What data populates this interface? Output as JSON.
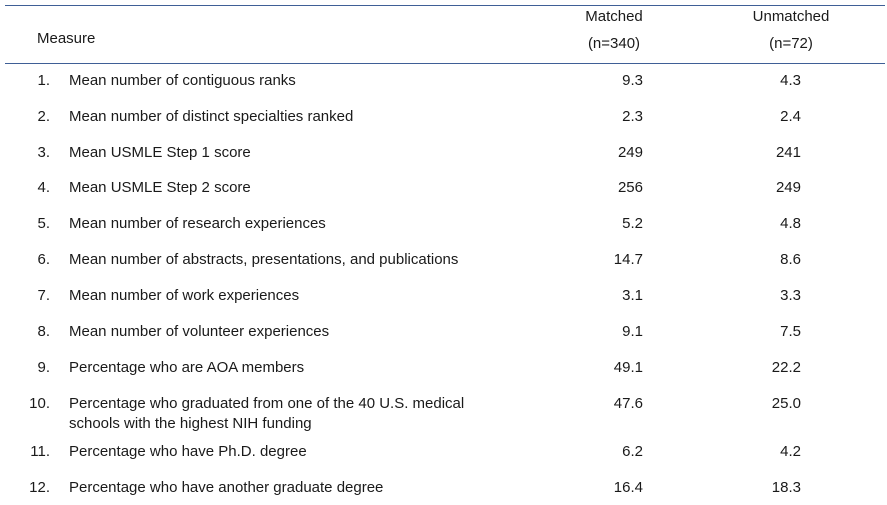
{
  "table": {
    "header": {
      "measure": "Measure",
      "matched": [
        "Matched",
        "(n=340)"
      ],
      "unmatched": [
        "Unmatched",
        "(n=72)"
      ]
    },
    "rows": [
      {
        "number": "1.",
        "label": [
          "Mean number of contiguous ranks"
        ],
        "matched": "9.3",
        "unmatched": "4.3"
      },
      {
        "number": "2.",
        "label": [
          "Mean number of distinct specialties ranked"
        ],
        "matched": "2.3",
        "unmatched": "2.4"
      },
      {
        "number": "3.",
        "label": [
          "Mean USMLE Step 1 score"
        ],
        "matched": "249",
        "unmatched": "241"
      },
      {
        "number": "4.",
        "label": [
          "Mean USMLE Step 2 score"
        ],
        "matched": "256",
        "unmatched": "249"
      },
      {
        "number": "5.",
        "label": [
          "Mean number of research experiences"
        ],
        "matched": "5.2",
        "unmatched": "4.8"
      },
      {
        "number": "6.",
        "label": [
          "Mean number of abstracts, presentations, and publications"
        ],
        "matched": "14.7",
        "unmatched": "8.6"
      },
      {
        "number": "7.",
        "label": [
          "Mean number of work experiences"
        ],
        "matched": "3.1",
        "unmatched": "3.3"
      },
      {
        "number": "8.",
        "label": [
          "Mean number of volunteer experiences"
        ],
        "matched": "9.1",
        "unmatched": "7.5"
      },
      {
        "number": "9.",
        "label": [
          "Percentage who are AOA members"
        ],
        "matched": "49.1",
        "unmatched": "22.2"
      },
      {
        "number": "10.",
        "label": [
          "Percentage who graduated from one of the 40 U.S. medical",
          "schools with the highest NIH funding"
        ],
        "matched": "47.6",
        "unmatched": "25.0"
      },
      {
        "number": "11.",
        "label": [
          "Percentage who have Ph.D. degree"
        ],
        "matched": "6.2",
        "unmatched": "4.2"
      },
      {
        "number": "12.",
        "label": [
          "Percentage who have another graduate degree"
        ],
        "matched": "16.4",
        "unmatched": "18.3"
      }
    ]
  }
}
